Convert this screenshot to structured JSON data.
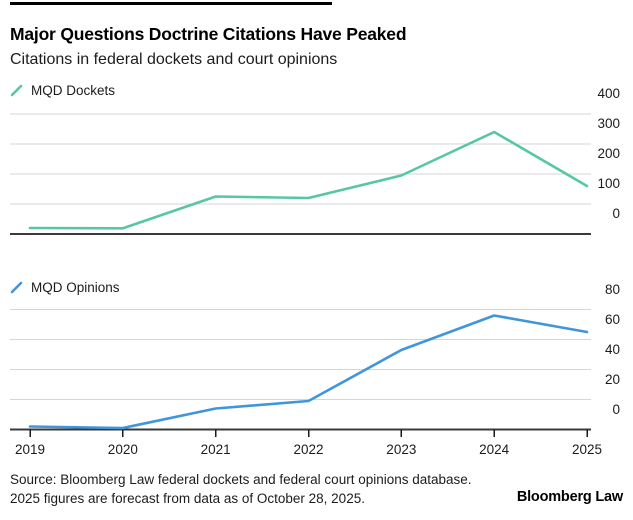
{
  "header": {
    "title": "Major Questions Doctrine Citations Have Peaked",
    "subtitle": "Citations in federal dockets and court opinions"
  },
  "colors": {
    "dockets_line": "#56c7a2",
    "opinions_line": "#4195db",
    "gridline": "#d6d6d6",
    "baseline": "#3a3a3a",
    "axis_tick": "#1a1a1a",
    "title_text": "#000000",
    "body_text": "#1c1c1c"
  },
  "chart_data": [
    {
      "type": "line",
      "name": "MQD Dockets",
      "x": [
        "2019",
        "2020",
        "2021",
        "2022",
        "2023",
        "2024",
        "2025"
      ],
      "values": [
        20,
        19,
        125,
        120,
        195,
        340,
        160
      ],
      "ylim": [
        0,
        400
      ],
      "yticks": [
        0,
        100,
        200,
        300,
        400
      ],
      "ytick_side": "right",
      "grid": true,
      "legend_position": "top-left",
      "line_color": "#56c7a2"
    },
    {
      "type": "line",
      "name": "MQD Opinions",
      "x": [
        "2019",
        "2020",
        "2021",
        "2022",
        "2023",
        "2024",
        "2025"
      ],
      "values": [
        2,
        1,
        14,
        19,
        53,
        76,
        65
      ],
      "ylim": [
        0,
        80
      ],
      "yticks": [
        0,
        20,
        40,
        60,
        80
      ],
      "ytick_side": "right",
      "grid": true,
      "legend_position": "top-left",
      "line_color": "#4195db"
    }
  ],
  "x_axis": {
    "labels": [
      "2019",
      "2020",
      "2021",
      "2022",
      "2023",
      "2024",
      "2025"
    ]
  },
  "footer": {
    "source_line1": "Source: Bloomberg Law federal dockets and federal court opinions database.",
    "source_line2": "2025 figures are forecast from data as of October 28, 2025.",
    "brand": "Bloomberg Law"
  }
}
